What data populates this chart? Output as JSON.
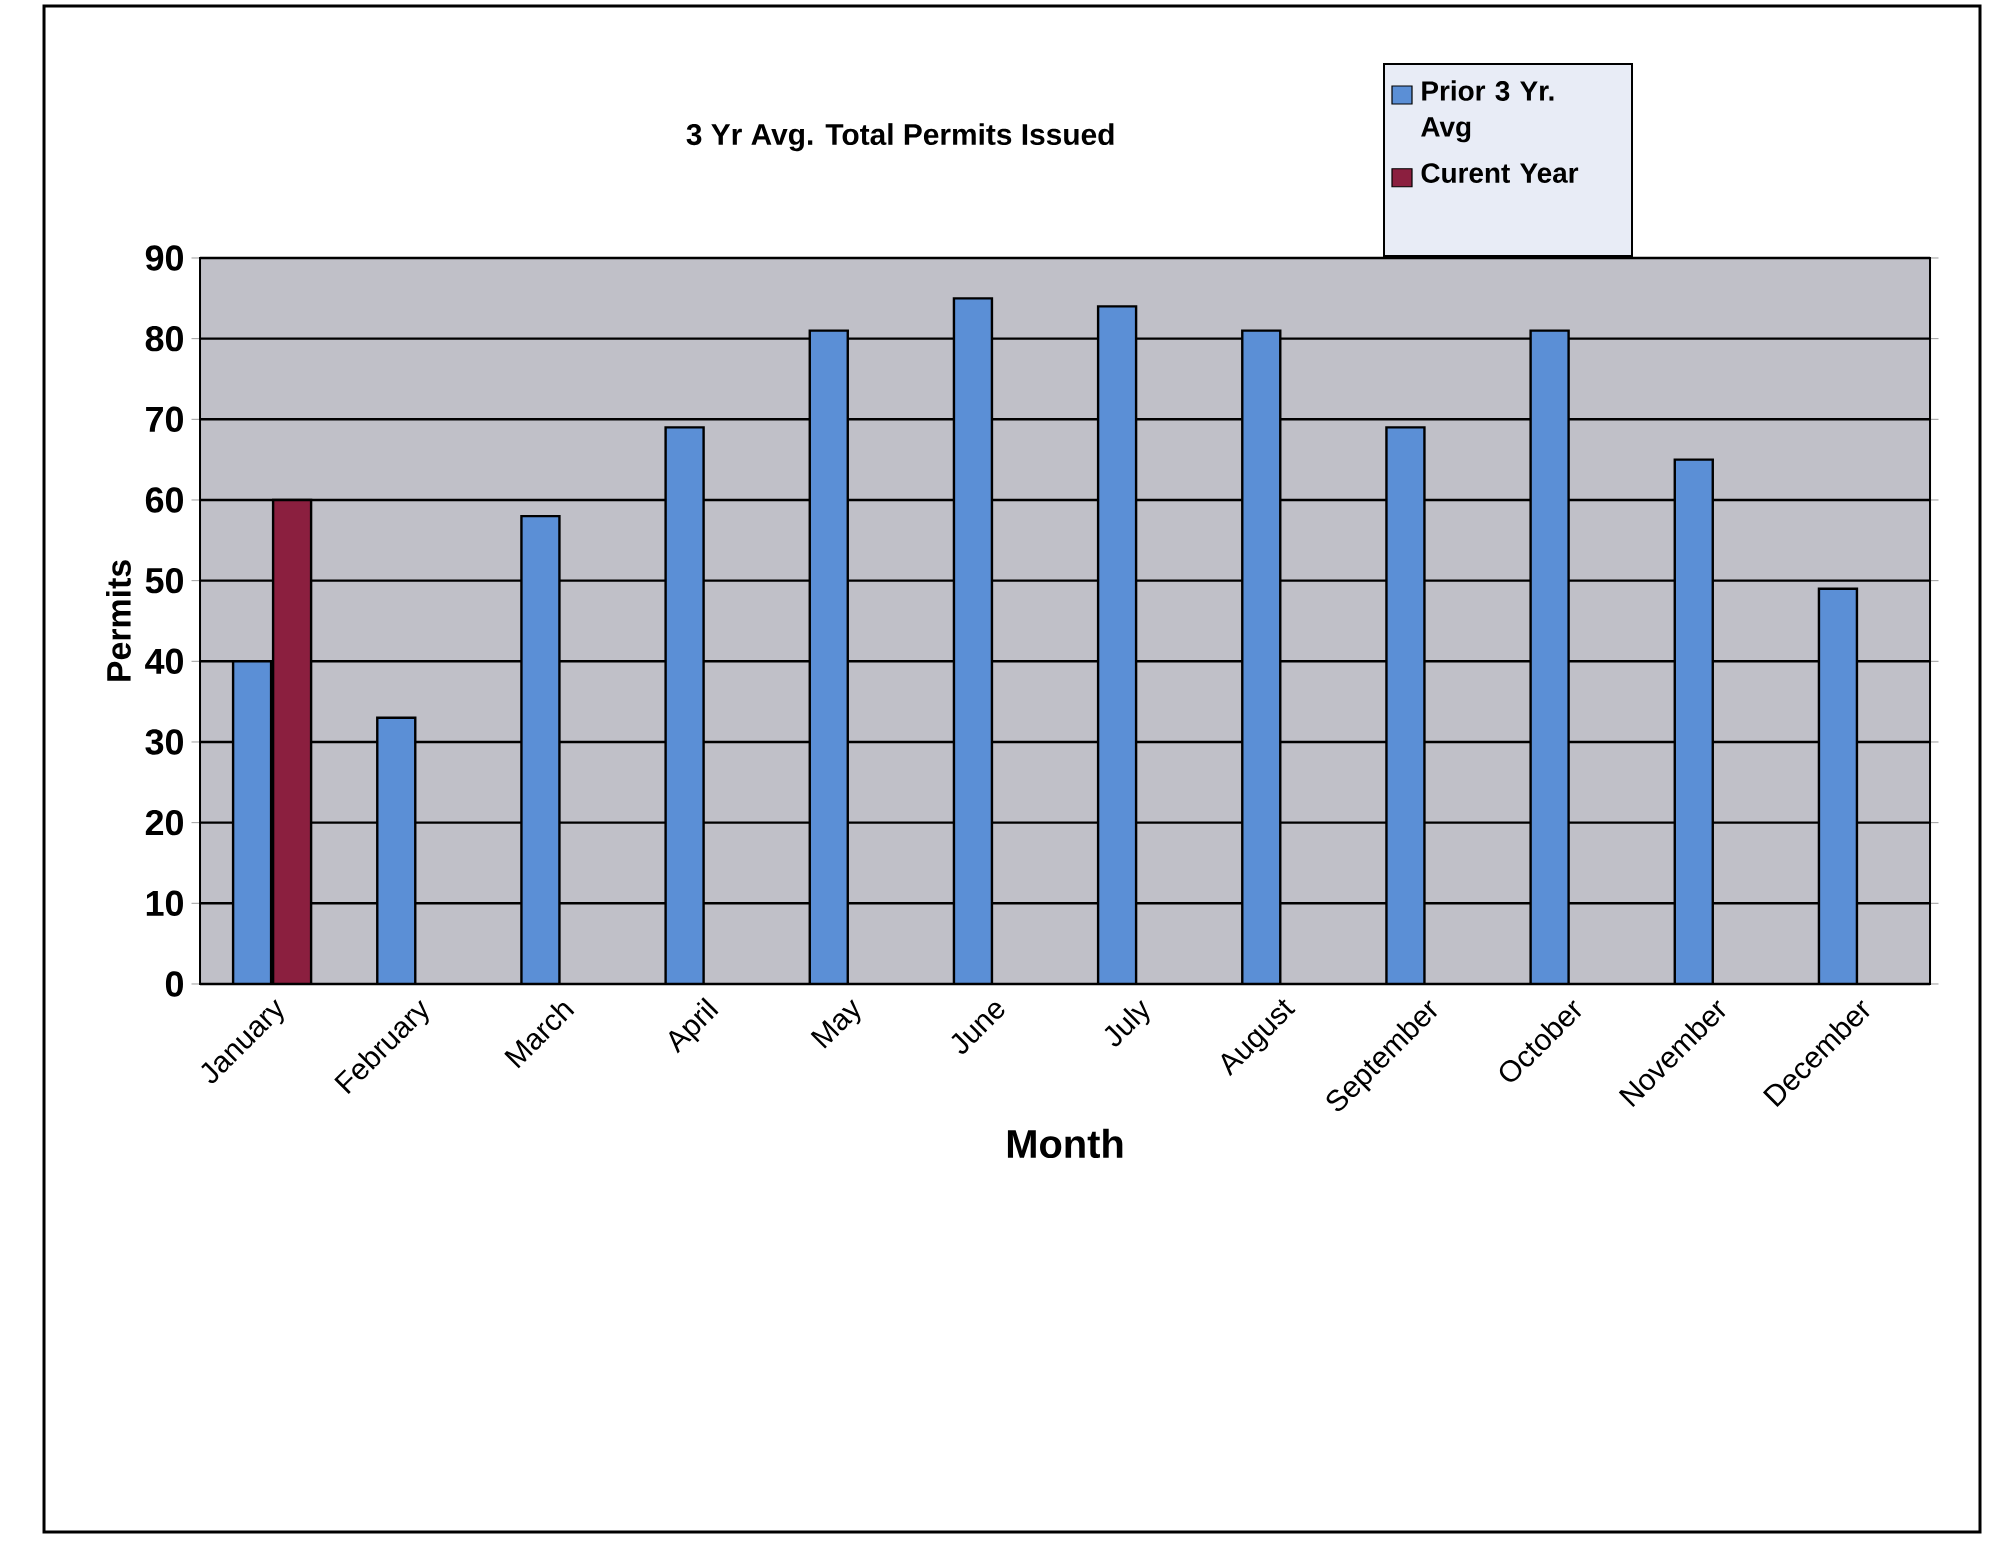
{
  "chart_data": {
    "type": "bar",
    "title": "3 Yr Avg. Total Permits Issued",
    "xlabel": "Month",
    "ylabel": "Permits",
    "categories": [
      "January",
      "February",
      "March",
      "April",
      "May",
      "June",
      "July",
      "August",
      "September",
      "October",
      "November",
      "December"
    ],
    "series": [
      {
        "name": "Prior 3 Yr. Avg",
        "color": "#5b8fd6",
        "values": [
          40,
          33,
          58,
          69,
          81,
          85,
          84,
          81,
          69,
          81,
          65,
          49
        ]
      },
      {
        "name": "Curent Year",
        "color": "#8b1f3f",
        "values": [
          60,
          null,
          null,
          null,
          null,
          null,
          null,
          null,
          null,
          null,
          null,
          null
        ]
      }
    ],
    "ylim": [
      0,
      90
    ],
    "yticks": [
      0,
      10,
      20,
      30,
      40,
      50,
      60,
      70,
      80,
      90
    ],
    "grid": "y",
    "legend": "top right"
  }
}
